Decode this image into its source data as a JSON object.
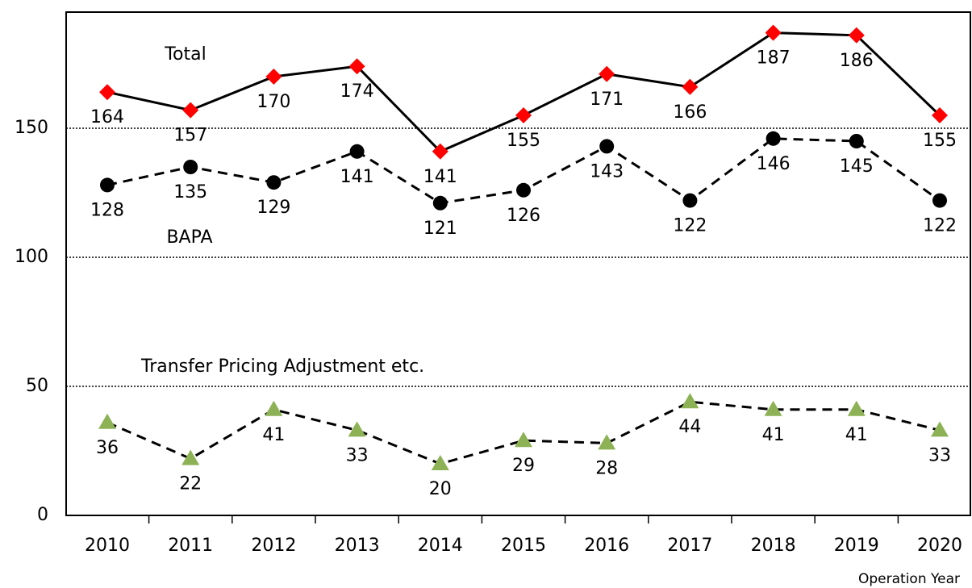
{
  "chart_data": {
    "type": "line",
    "categories": [
      "2010",
      "2011",
      "2012",
      "2013",
      "2014",
      "2015",
      "2016",
      "2017",
      "2018",
      "2019",
      "2020"
    ],
    "series": [
      {
        "name": "Total",
        "color": "#ff0000",
        "marker": "diamond",
        "line_style": "solid",
        "values": [
          164,
          157,
          170,
          174,
          141,
          155,
          171,
          166,
          187,
          186,
          155
        ]
      },
      {
        "name": "BAPA",
        "color": "#000000",
        "marker": "circle",
        "line_style": "dashed",
        "values": [
          128,
          135,
          129,
          141,
          121,
          126,
          143,
          122,
          146,
          145,
          122
        ]
      },
      {
        "name": "Transfer Pricing Adjustment etc.",
        "color": "#8db255",
        "marker": "triangle",
        "line_style": "dashed",
        "values": [
          36,
          22,
          41,
          33,
          20,
          29,
          28,
          44,
          41,
          41,
          33
        ]
      }
    ],
    "x_label": "Operation Year",
    "ylim": [
      0,
      195
    ],
    "yticks": [
      0,
      50,
      100,
      150
    ],
    "grid": true
  }
}
